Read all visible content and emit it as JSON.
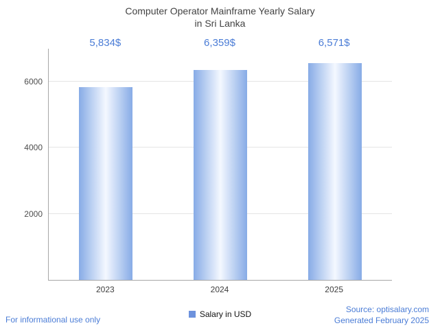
{
  "chart_data": {
    "type": "bar",
    "title": "Computer Operator Mainframe Yearly Salary in Sri Lanka",
    "title_line1": "Computer Operator Mainframe Yearly Salary",
    "title_line2": "in Sri Lanka",
    "categories": [
      "2023",
      "2024",
      "2025"
    ],
    "values": [
      5834,
      6359,
      6571
    ],
    "value_labels": [
      "5,834$",
      "6,359$",
      "6,571$"
    ],
    "series_name": "Salary in USD",
    "xlabel": "",
    "ylabel": "",
    "ylim": [
      0,
      7000
    ],
    "yticks": [
      2000,
      4000,
      6000
    ],
    "grid": true,
    "legend_position": "bottom"
  },
  "footer": {
    "left": "For informational use only",
    "source": "Source: optisalary.com",
    "generated": "Generated February 2025"
  },
  "colors": {
    "accent": "#4a7cd6",
    "bar_edge": "#87abe6",
    "bar_center": "#f4f8ff",
    "legend_swatch": "#6d92dd",
    "axis": "#a6a6a6",
    "grid": "#e4e4e4",
    "tick": "#4d4d4d",
    "title": "#424242"
  }
}
